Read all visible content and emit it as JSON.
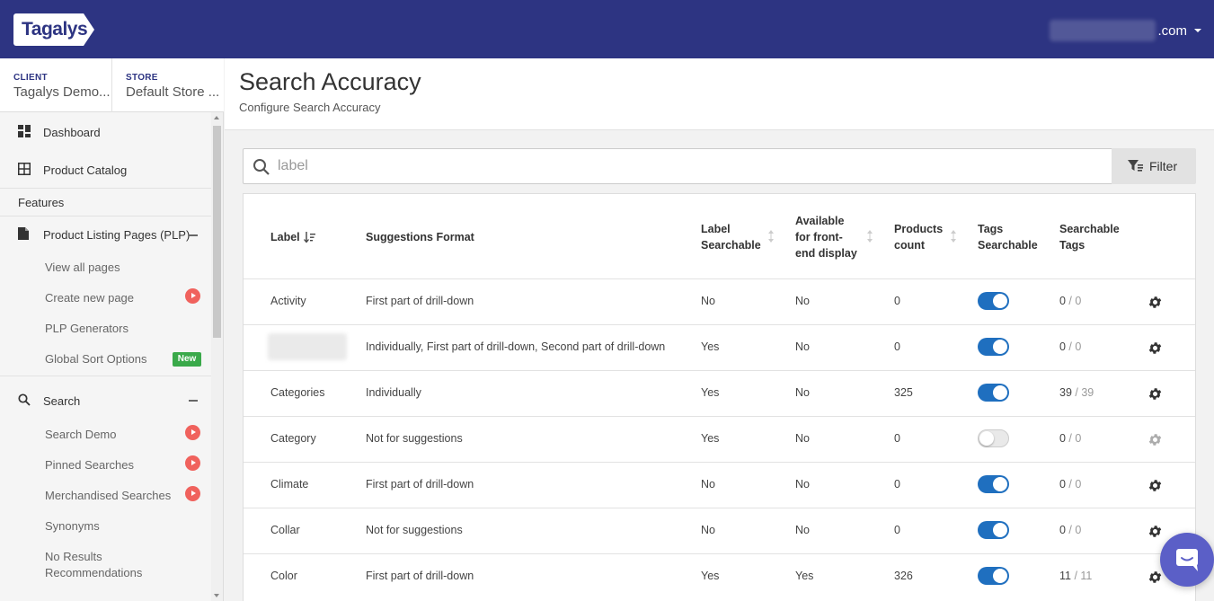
{
  "header": {
    "logo_text": "Tagalys",
    "user_domain_suffix": ".com"
  },
  "context": {
    "client_key": "CLIENT",
    "client_value": "Tagalys Demo...",
    "store_key": "STORE",
    "store_value": "Default Store ..."
  },
  "sidebar": {
    "dashboard": "Dashboard",
    "product_catalog": "Product Catalog",
    "features_heading": "Features",
    "plp": "Product Listing Pages (PLP)",
    "plp_items": [
      "View all pages",
      "Create new page",
      "PLP Generators",
      "Global Sort Options"
    ],
    "new_badge": "New",
    "search": "Search",
    "search_items": [
      "Search Demo",
      "Pinned Searches",
      "Merchandised Searches",
      "Synonyms",
      "No Results",
      "Recommendations"
    ]
  },
  "page": {
    "title": "Search Accuracy",
    "subtitle": "Configure Search Accuracy"
  },
  "search": {
    "placeholder": "label",
    "filter_label": "Filter"
  },
  "table": {
    "headers": {
      "label": "Label",
      "suggestions_format": "Suggestions Format",
      "label_searchable_1": "Label",
      "label_searchable_2": "Searchable",
      "available_1": "Available",
      "available_2": "for front-",
      "available_3": "end display",
      "products_count_1": "Products",
      "products_count_2": "count",
      "tags_searchable_1": "Tags",
      "tags_searchable_2": "Searchable",
      "searchable_tags_1": "Searchable",
      "searchable_tags_2": "Tags"
    },
    "rows": [
      {
        "label": "Activity",
        "format": "First part of drill-down",
        "label_searchable": "No",
        "available": "No",
        "count": "0",
        "tags_searchable": true,
        "tags_a": "0",
        "tags_b": " / 0"
      },
      {
        "label": "",
        "format": "Individually, First part of drill-down, Second part of drill-down",
        "label_searchable": "Yes",
        "available": "No",
        "count": "0",
        "tags_searchable": true,
        "tags_a": "0",
        "tags_b": " / 0"
      },
      {
        "label": "Categories",
        "format": "Individually",
        "label_searchable": "Yes",
        "available": "No",
        "count": "325",
        "tags_searchable": true,
        "tags_a": "39",
        "tags_b": " / 39"
      },
      {
        "label": "Category",
        "format": "Not for suggestions",
        "label_searchable": "Yes",
        "available": "No",
        "count": "0",
        "tags_searchable": false,
        "tags_a": "0",
        "tags_b": " / 0"
      },
      {
        "label": "Climate",
        "format": "First part of drill-down",
        "label_searchable": "No",
        "available": "No",
        "count": "0",
        "tags_searchable": true,
        "tags_a": "0",
        "tags_b": " / 0"
      },
      {
        "label": "Collar",
        "format": "Not for suggestions",
        "label_searchable": "No",
        "available": "No",
        "count": "0",
        "tags_searchable": true,
        "tags_a": "0",
        "tags_b": " / 0"
      },
      {
        "label": "Color",
        "format": "First part of drill-down",
        "label_searchable": "Yes",
        "available": "Yes",
        "count": "326",
        "tags_searchable": true,
        "tags_a": "11",
        "tags_b": " / 11"
      }
    ]
  },
  "colors": {
    "brand": "#2d3482",
    "toggle_on": "#1f6fbf",
    "accent_red": "#f0625d",
    "badge_green": "#3aa94a"
  }
}
